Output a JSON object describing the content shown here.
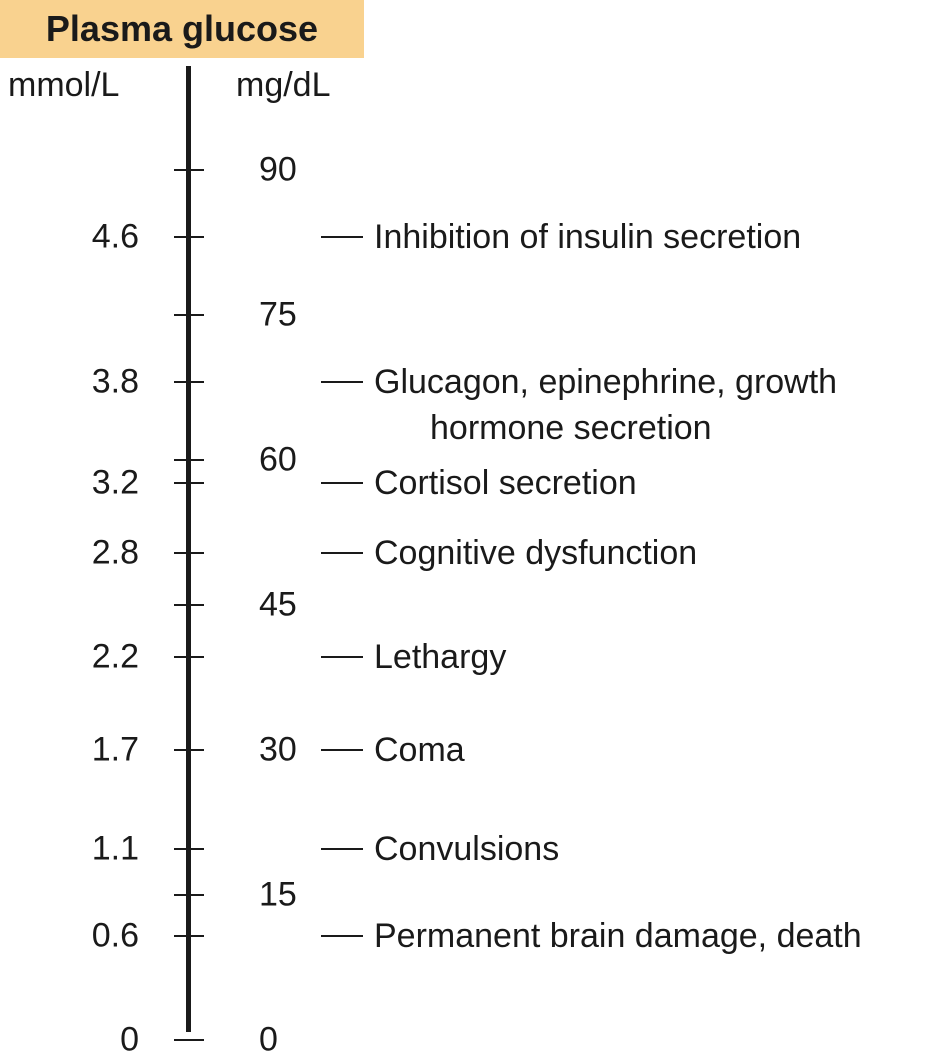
{
  "title": "Plasma glucose",
  "title_bg": "#f9d28f",
  "units": {
    "left": "mmol/L",
    "right": "mg/dL"
  },
  "axis": {
    "mgdl_min": 0,
    "mgdl_max": 90
  },
  "mgdl_ticks": [
    {
      "label": "90",
      "value": 90
    },
    {
      "label": "75",
      "value": 75
    },
    {
      "label": "60",
      "value": 60
    },
    {
      "label": "45",
      "value": 45
    },
    {
      "label": "15",
      "value": 15
    },
    {
      "label": "0",
      "value": 0
    }
  ],
  "thresholds": [
    {
      "mmol": "4.6",
      "mgdl": "",
      "mgdl_value": 83,
      "effect": [
        "Inhibition of insulin secretion"
      ]
    },
    {
      "mmol": "3.8",
      "mgdl": "",
      "mgdl_value": 68,
      "effect": [
        "Glucagon, epinephrine, growth",
        "hormone secretion"
      ]
    },
    {
      "mmol": "3.2",
      "mgdl": "",
      "mgdl_value": 57.6,
      "effect": [
        "Cortisol secretion"
      ]
    },
    {
      "mmol": "2.8",
      "mgdl": "",
      "mgdl_value": 50.4,
      "effect": [
        "Cognitive dysfunction"
      ]
    },
    {
      "mmol": "2.2",
      "mgdl": "",
      "mgdl_value": 39.6,
      "effect": [
        "Lethargy"
      ]
    },
    {
      "mmol": "1.7",
      "mgdl": "30",
      "mgdl_value": 30,
      "effect": [
        "Coma"
      ]
    },
    {
      "mmol": "1.1",
      "mgdl": "",
      "mgdl_value": 19.8,
      "effect": [
        "Convulsions"
      ]
    },
    {
      "mmol": "0.6",
      "mgdl": "",
      "mgdl_value": 10.8,
      "effect": [
        "Permanent brain damage, death"
      ]
    },
    {
      "mmol": "0",
      "mgdl": "",
      "mgdl_value": 0,
      "effect": []
    }
  ]
}
